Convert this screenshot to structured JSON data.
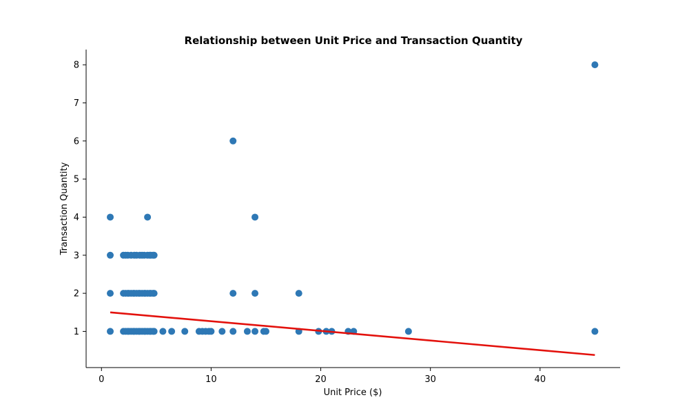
{
  "chart_data": {
    "type": "scatter",
    "title": "Relationship between Unit Price and Transaction Quantity",
    "xlabel": "Unit Price ($)",
    "ylabel": "Transaction Quantity",
    "xlim": [
      -1.4,
      47.3
    ],
    "ylim": [
      0.05,
      8.4
    ],
    "xticks": [
      0,
      10,
      20,
      30,
      40
    ],
    "yticks": [
      1,
      2,
      3,
      4,
      5,
      6,
      7,
      8
    ],
    "grid": false,
    "colors": {
      "points": "#2e78b5",
      "trend": "#e3110c"
    },
    "trendline": {
      "x": [
        0.8,
        45
      ],
      "y": [
        1.5,
        0.38
      ]
    },
    "points": [
      {
        "x": 0.8,
        "y": 1
      },
      {
        "x": 0.8,
        "y": 2
      },
      {
        "x": 0.8,
        "y": 3
      },
      {
        "x": 0.8,
        "y": 4
      },
      {
        "x": 2.0,
        "y": 1
      },
      {
        "x": 2.2,
        "y": 1
      },
      {
        "x": 2.4,
        "y": 1
      },
      {
        "x": 2.5,
        "y": 1
      },
      {
        "x": 2.7,
        "y": 1
      },
      {
        "x": 2.9,
        "y": 1
      },
      {
        "x": 3.0,
        "y": 1
      },
      {
        "x": 3.2,
        "y": 1
      },
      {
        "x": 3.4,
        "y": 1
      },
      {
        "x": 3.5,
        "y": 1
      },
      {
        "x": 3.7,
        "y": 1
      },
      {
        "x": 3.9,
        "y": 1
      },
      {
        "x": 4.0,
        "y": 1
      },
      {
        "x": 4.2,
        "y": 1
      },
      {
        "x": 4.4,
        "y": 1
      },
      {
        "x": 4.5,
        "y": 1
      },
      {
        "x": 4.7,
        "y": 1
      },
      {
        "x": 4.8,
        "y": 1
      },
      {
        "x": 5.6,
        "y": 1
      },
      {
        "x": 6.4,
        "y": 1
      },
      {
        "x": 7.6,
        "y": 1
      },
      {
        "x": 8.9,
        "y": 1
      },
      {
        "x": 9.2,
        "y": 1
      },
      {
        "x": 9.5,
        "y": 1
      },
      {
        "x": 9.8,
        "y": 1
      },
      {
        "x": 10.0,
        "y": 1
      },
      {
        "x": 11.0,
        "y": 1
      },
      {
        "x": 12.0,
        "y": 1
      },
      {
        "x": 13.3,
        "y": 1
      },
      {
        "x": 14.0,
        "y": 1
      },
      {
        "x": 14.8,
        "y": 1
      },
      {
        "x": 15.0,
        "y": 1
      },
      {
        "x": 18.0,
        "y": 1
      },
      {
        "x": 19.8,
        "y": 1
      },
      {
        "x": 20.5,
        "y": 1
      },
      {
        "x": 21.0,
        "y": 1
      },
      {
        "x": 22.5,
        "y": 1
      },
      {
        "x": 23.0,
        "y": 1
      },
      {
        "x": 28.0,
        "y": 1
      },
      {
        "x": 45.0,
        "y": 1
      },
      {
        "x": 2.0,
        "y": 2
      },
      {
        "x": 2.2,
        "y": 2
      },
      {
        "x": 2.4,
        "y": 2
      },
      {
        "x": 2.5,
        "y": 2
      },
      {
        "x": 2.7,
        "y": 2
      },
      {
        "x": 2.9,
        "y": 2
      },
      {
        "x": 3.0,
        "y": 2
      },
      {
        "x": 3.2,
        "y": 2
      },
      {
        "x": 3.4,
        "y": 2
      },
      {
        "x": 3.5,
        "y": 2
      },
      {
        "x": 3.7,
        "y": 2
      },
      {
        "x": 3.9,
        "y": 2
      },
      {
        "x": 4.0,
        "y": 2
      },
      {
        "x": 4.2,
        "y": 2
      },
      {
        "x": 4.4,
        "y": 2
      },
      {
        "x": 4.5,
        "y": 2
      },
      {
        "x": 4.7,
        "y": 2
      },
      {
        "x": 4.8,
        "y": 2
      },
      {
        "x": 12.0,
        "y": 2
      },
      {
        "x": 14.0,
        "y": 2
      },
      {
        "x": 18.0,
        "y": 2
      },
      {
        "x": 2.0,
        "y": 3
      },
      {
        "x": 2.2,
        "y": 3
      },
      {
        "x": 2.4,
        "y": 3
      },
      {
        "x": 2.7,
        "y": 3
      },
      {
        "x": 3.0,
        "y": 3
      },
      {
        "x": 3.2,
        "y": 3
      },
      {
        "x": 3.5,
        "y": 3
      },
      {
        "x": 3.7,
        "y": 3
      },
      {
        "x": 3.9,
        "y": 3
      },
      {
        "x": 4.2,
        "y": 3
      },
      {
        "x": 4.4,
        "y": 3
      },
      {
        "x": 4.5,
        "y": 3
      },
      {
        "x": 4.7,
        "y": 3
      },
      {
        "x": 4.8,
        "y": 3
      },
      {
        "x": 4.2,
        "y": 4
      },
      {
        "x": 14.0,
        "y": 4
      },
      {
        "x": 12.0,
        "y": 6
      },
      {
        "x": 45.0,
        "y": 8
      }
    ]
  }
}
